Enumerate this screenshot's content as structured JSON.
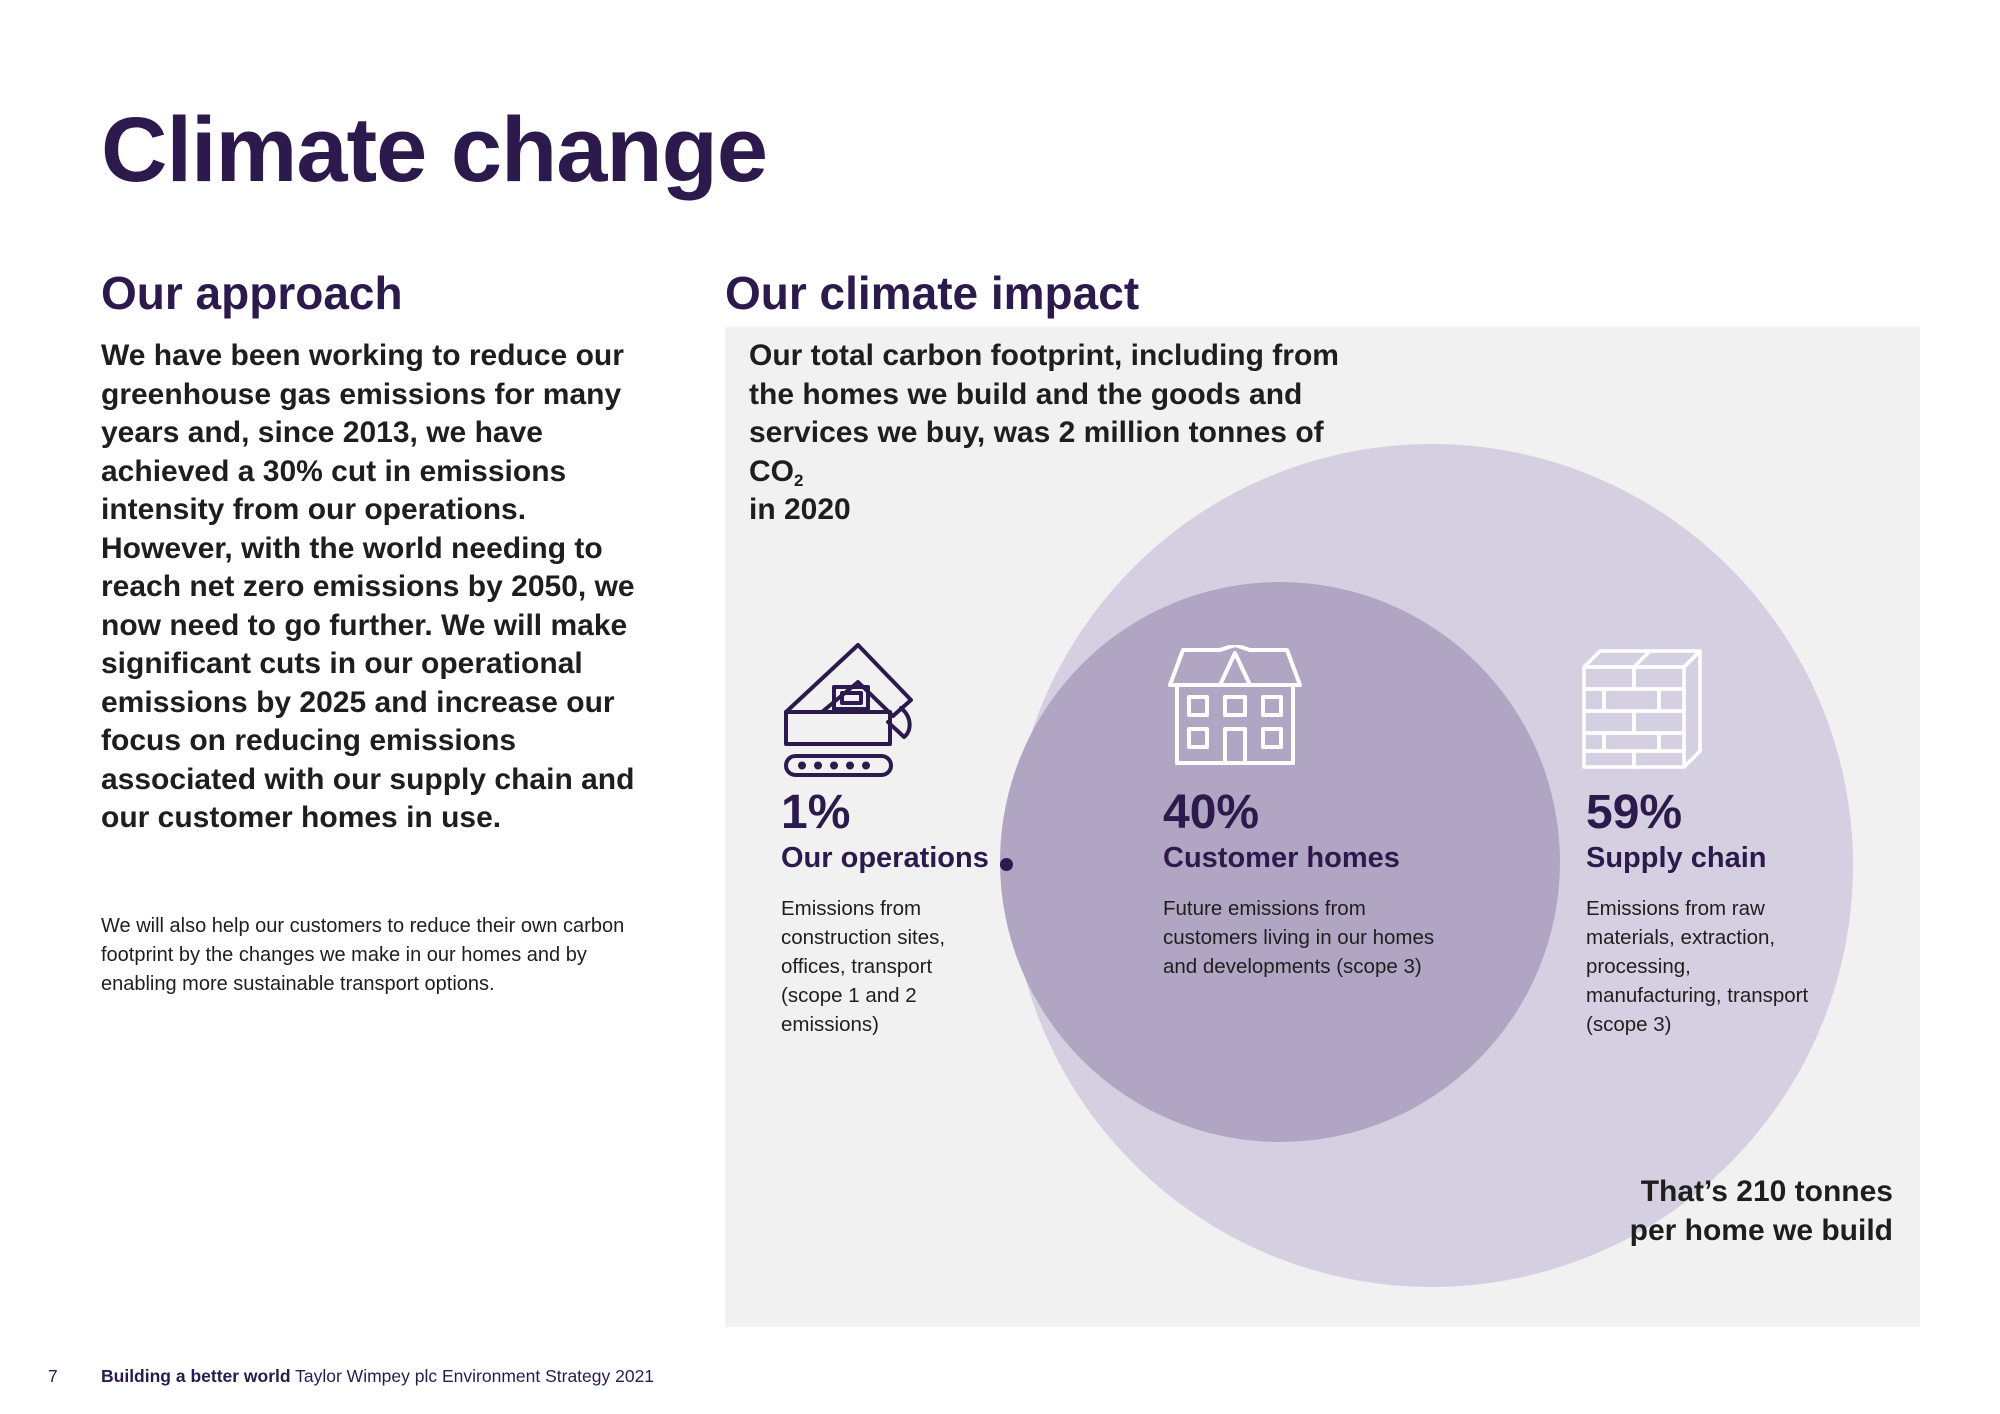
{
  "page": {
    "title": "Climate change"
  },
  "approach": {
    "heading": "Our approach",
    "lead": "We have been working to reduce our greenhouse gas emissions for many years and, since 2013, we have achieved a 30% cut in emissions intensity from our operations. However, with the world needing to reach net zero emissions by 2050, we now need to go further. We will make significant cuts in our operational emissions by 2025 and increase our focus on reducing emissions associated with our supply chain and our customer homes in use.",
    "body": "We will also help our customers to reduce their own carbon footprint by the changes we make in our homes and by enabling more sustainable transport options."
  },
  "impact": {
    "heading": "Our climate impact",
    "intro_text": "Our total carbon footprint, including from the homes we build and the goods and services we buy, was 2 million tonnes of CO",
    "intro_sub": "2",
    "intro_tail": "in 2020",
    "stats": [
      {
        "percent": "1%",
        "share": 1,
        "label": "Our operations",
        "description": "Emissions from construction sites, offices, transport (scope 1 and 2 emissions)",
        "icon": "excavator-house-icon"
      },
      {
        "percent": "40%",
        "share": 40,
        "label": "Customer homes",
        "description": "Future emissions from customers living in our homes and developments (scope 3)",
        "icon": "house-icon"
      },
      {
        "percent": "59%",
        "share": 59,
        "label": "Supply chain",
        "description": "Emissions from raw materials, extraction, processing, manufacturing, transport (scope 3)",
        "icon": "bricks-icon"
      }
    ],
    "per_home": "That’s 210 tonnes per home we build"
  },
  "footer": {
    "page_number": "7",
    "publication": "Building a better world",
    "document": "Taylor Wimpey plc Environment Strategy 2021"
  },
  "colors": {
    "brand_purple": "#2d1a4d",
    "outer_circle": "#d4d0e1",
    "inner_circle": "#b0a6c3",
    "panel_background": "#f1f1f1"
  }
}
